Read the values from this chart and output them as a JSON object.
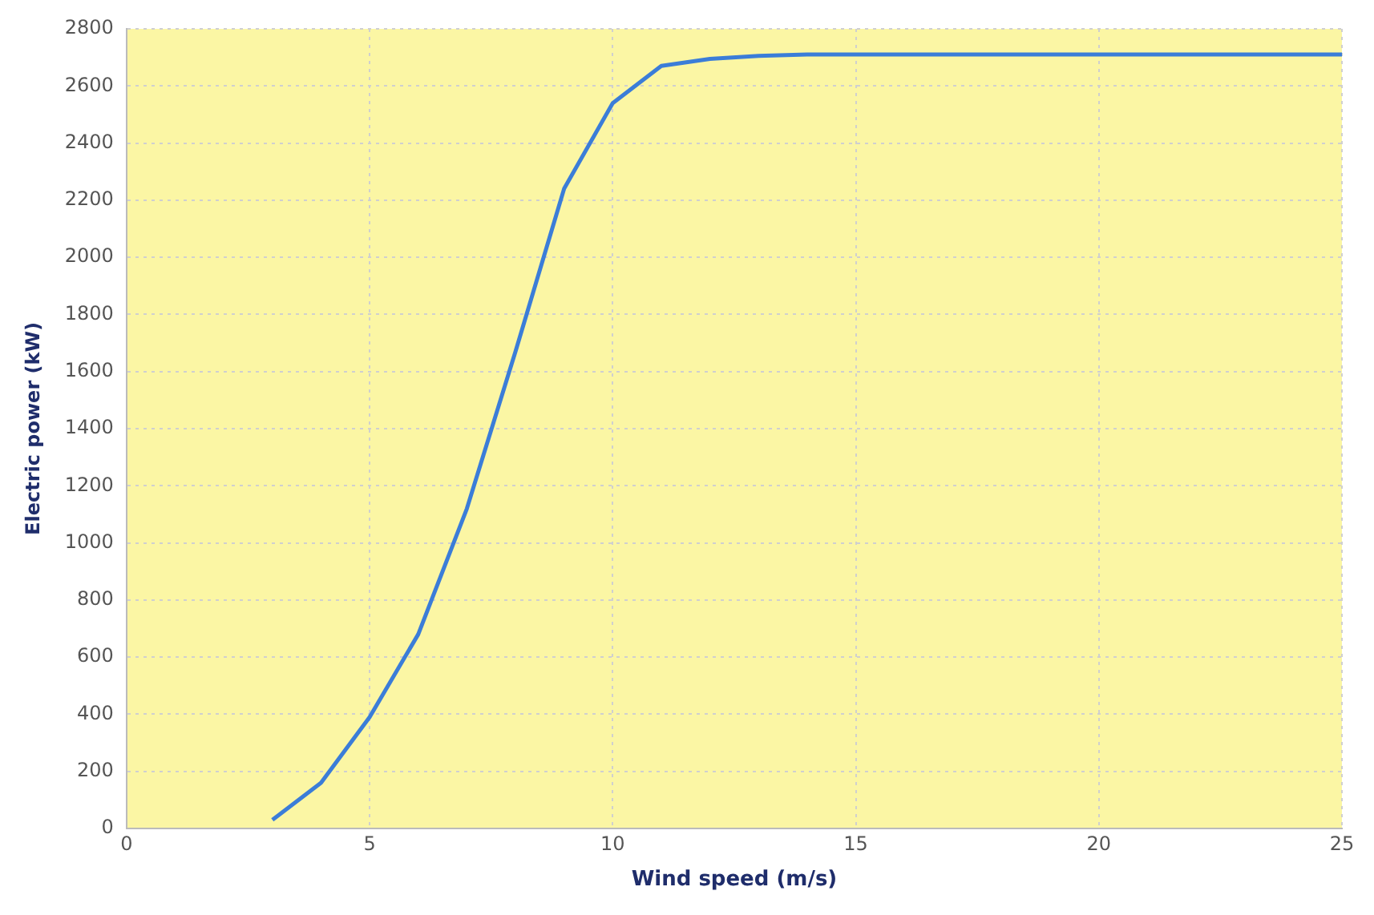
{
  "chart_data": {
    "type": "line",
    "xlabel": "Wind speed (m/s)",
    "ylabel": "Electric power (kW)",
    "x": [
      3,
      4,
      5,
      6,
      7,
      8,
      9,
      10,
      11,
      12,
      13,
      14,
      15,
      16,
      17,
      18,
      19,
      20,
      21,
      22,
      23,
      24,
      25
    ],
    "series": [
      {
        "color": "#3b7dd8",
        "values": [
          30,
          160,
          390,
          680,
          1120,
          1670,
          2240,
          2540,
          2670,
          2695,
          2705,
          2710,
          2710,
          2710,
          2710,
          2710,
          2710,
          2710,
          2710,
          2710,
          2710,
          2710,
          2710
        ]
      }
    ],
    "xlim": [
      0,
      25
    ],
    "xticks": [
      0,
      5,
      10,
      15,
      20,
      25
    ],
    "ylim": [
      0,
      2800
    ],
    "yticks": [
      0,
      200,
      400,
      600,
      800,
      1000,
      1200,
      1400,
      1600,
      1800,
      2000,
      2200,
      2400,
      2600,
      2800
    ],
    "grid": true,
    "legend": false,
    "marker": "none",
    "line_style": "solid"
  }
}
